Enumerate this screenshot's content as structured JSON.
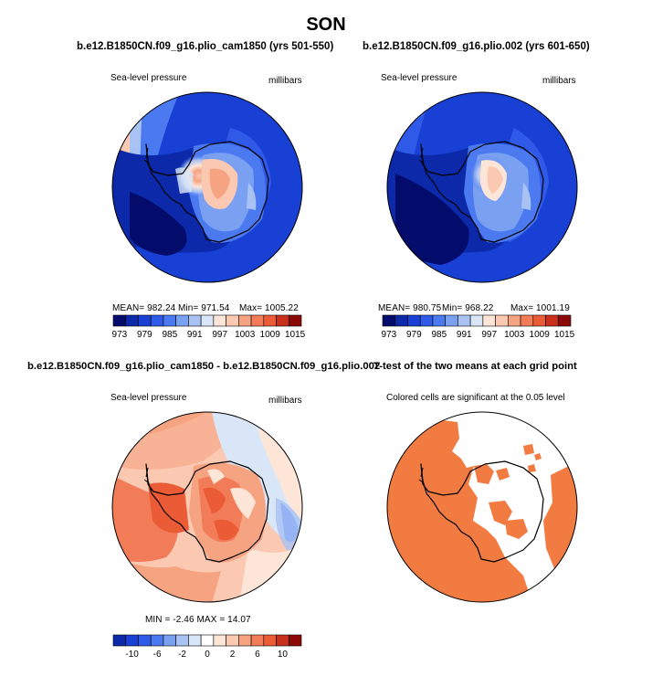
{
  "title": "SON",
  "colors": {
    "abs_scale": [
      "#030c6b",
      "#0b29a8",
      "#1840d4",
      "#2f5ae8",
      "#4a79f0",
      "#7aa0f2",
      "#a9c2f4",
      "#d9e6f8",
      "#fde6d8",
      "#fbc9b2",
      "#f6a382",
      "#f27b58",
      "#ea5b36",
      "#c8301b",
      "#8b0a08"
    ],
    "diff_scale": [
      "#0b29a8",
      "#1840d4",
      "#2f5ae8",
      "#4a79f0",
      "#7aa0f2",
      "#a9c2f4",
      "#d9e6f8",
      "#ffffff",
      "#fde6d8",
      "#fbc9b2",
      "#f6a382",
      "#f27b58",
      "#ea5b36",
      "#c8301b",
      "#8b0a08"
    ],
    "significance": "#f27b42",
    "coastline": "#000000"
  },
  "chart_data": [
    {
      "type": "heatmap",
      "panel": "top-left",
      "title": "b.e12.B1850CN.f09_g16.plio_cam1850 (yrs 501-550)",
      "variable": "Sea-level pressure",
      "units": "millibars",
      "mean_label": "MEAN= 982.24",
      "min_label": "Min= 971.54",
      "max_label": "Max= 1005.22",
      "mean": 982.24,
      "min": 971.54,
      "max": 1005.22,
      "colorbar_ticks": [
        "973",
        "979",
        "985",
        "991",
        "997",
        "1003",
        "1009",
        "1015"
      ]
    },
    {
      "type": "heatmap",
      "panel": "top-right",
      "title": "b.e12.B1850CN.f09_g16.plio.002 (yrs 601-650)",
      "variable": "Sea-level pressure",
      "units": "millibars",
      "mean_label": "MEAN= 980.75",
      "min_label": "Min= 968.22",
      "max_label": "Max= 1001.19",
      "mean": 980.75,
      "min": 968.22,
      "max": 1001.19,
      "colorbar_ticks": [
        "973",
        "979",
        "985",
        "991",
        "997",
        "1003",
        "1009",
        "1015"
      ]
    },
    {
      "type": "heatmap",
      "panel": "bottom-left",
      "title": "b.e12.B1850CN.f09_g16.plio_cam1850 - b.e12.B1850CN.f09_g16.plio.002",
      "variable": "Sea-level pressure",
      "units": "millibars",
      "range_label": "MIN =   -2.46  MAX =   14.07",
      "min": -2.46,
      "max": 14.07,
      "colorbar_ticks": [
        "-10",
        "-6",
        "-2",
        "0",
        "2",
        "6",
        "10"
      ]
    },
    {
      "type": "heatmap",
      "panel": "bottom-right",
      "title": "T-test of the two means at each grid point",
      "subtitle": "Colored cells are significant at the 0.05 level"
    }
  ]
}
